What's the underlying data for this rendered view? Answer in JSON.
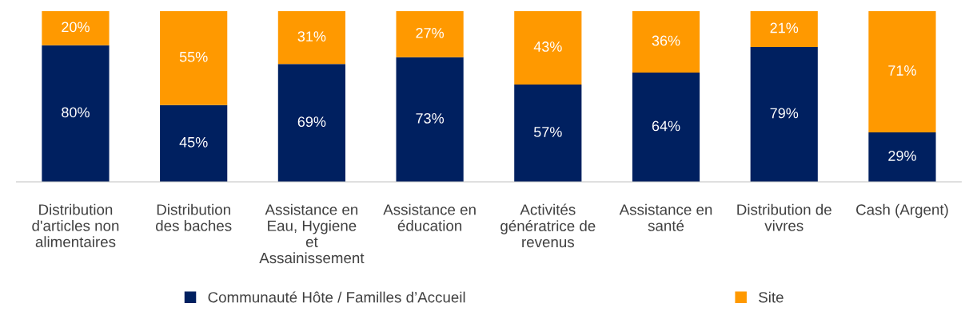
{
  "chart_data": {
    "type": "bar",
    "stacked": true,
    "categories": [
      "Distribution\nd'articles non\nalimentaires",
      "Distribution\ndes baches",
      "Assistance en\nEau, Hygiene\net\nAssainissement",
      "Assistance en\néducation",
      "Activités\ngénératrice de\nrevenus",
      "Assistance en\nsanté",
      "Distribution de\nvivres",
      "Cash (Argent)"
    ],
    "series": [
      {
        "name": "Communauté Hôte / Familles d’Accueil",
        "color": "#002060",
        "values": [
          80,
          45,
          69,
          73,
          57,
          64,
          79,
          29
        ],
        "value_labels": [
          "80%",
          "45%",
          "69%",
          "73%",
          "57%",
          "64%",
          "79%",
          "29%"
        ]
      },
      {
        "name": "Site",
        "color": "#ff9900",
        "values": [
          20,
          55,
          31,
          27,
          43,
          36,
          21,
          71
        ],
        "value_labels": [
          "20%",
          "55%",
          "31%",
          "27%",
          "43%",
          "36%",
          "21%",
          "71%"
        ]
      }
    ],
    "legend": "bottom",
    "grid": false
  }
}
